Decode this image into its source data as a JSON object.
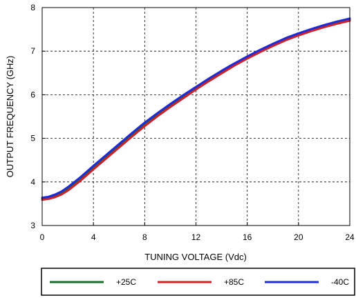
{
  "chart_data": {
    "type": "line",
    "title": "",
    "xlabel": "TUNING VOLTAGE (Vdc)",
    "ylabel": "OUTPUT FREQUENCY (GHz)",
    "xlim": [
      0,
      24
    ],
    "ylim": [
      3,
      8
    ],
    "x_ticks": [
      0,
      4,
      8,
      12,
      16,
      20,
      24
    ],
    "y_ticks": [
      3,
      4,
      5,
      6,
      7,
      8
    ],
    "grid": true,
    "grid_style": "dashed",
    "legend_position": "bottom",
    "series": [
      {
        "name": "+25C",
        "color": "#1a6b2e",
        "x": [
          0,
          0.5,
          1,
          1.5,
          2,
          3,
          4,
          5,
          6,
          7,
          8,
          9,
          10,
          11,
          12,
          13,
          14,
          15,
          16,
          17,
          18,
          19,
          20,
          21,
          22,
          23,
          24
        ],
        "y": [
          3.62,
          3.64,
          3.68,
          3.75,
          3.85,
          4.08,
          4.34,
          4.59,
          4.84,
          5.09,
          5.33,
          5.55,
          5.76,
          5.96,
          6.15,
          6.34,
          6.52,
          6.7,
          6.86,
          7.01,
          7.15,
          7.28,
          7.39,
          7.49,
          7.58,
          7.66,
          7.73
        ]
      },
      {
        "name": "+85C",
        "color": "#d0202a",
        "x": [
          0,
          0.5,
          1,
          1.5,
          2,
          3,
          4,
          5,
          6,
          7,
          8,
          9,
          10,
          11,
          12,
          13,
          14,
          15,
          16,
          17,
          18,
          19,
          20,
          21,
          22,
          23,
          24
        ],
        "y": [
          3.59,
          3.61,
          3.65,
          3.71,
          3.8,
          4.03,
          4.29,
          4.54,
          4.79,
          5.04,
          5.28,
          5.51,
          5.72,
          5.92,
          6.12,
          6.31,
          6.49,
          6.67,
          6.83,
          6.98,
          7.12,
          7.25,
          7.36,
          7.46,
          7.55,
          7.63,
          7.7
        ]
      },
      {
        "name": "-40C",
        "color": "#1e2bd6",
        "x": [
          0,
          0.5,
          1,
          1.5,
          2,
          3,
          4,
          5,
          6,
          7,
          8,
          9,
          10,
          11,
          12,
          13,
          14,
          15,
          16,
          17,
          18,
          19,
          20,
          21,
          22,
          23,
          24
        ],
        "y": [
          3.64,
          3.66,
          3.71,
          3.78,
          3.88,
          4.11,
          4.37,
          4.62,
          4.87,
          5.12,
          5.36,
          5.58,
          5.79,
          5.99,
          6.18,
          6.37,
          6.55,
          6.72,
          6.88,
          7.03,
          7.17,
          7.3,
          7.41,
          7.51,
          7.6,
          7.68,
          7.75
        ]
      }
    ]
  }
}
